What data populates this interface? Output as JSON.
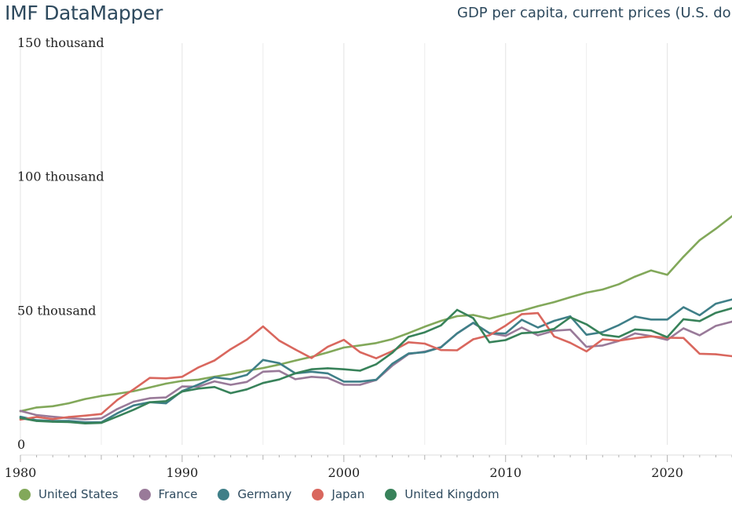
{
  "header": {
    "brand": "IMF DataMapper"
  },
  "chart_data": {
    "type": "line",
    "title": "GDP per capita, current prices (U.S. do",
    "xlabel": "",
    "ylabel": "",
    "xlim": [
      1980,
      2024
    ],
    "ylim": [
      0,
      150000
    ],
    "yticks": [
      {
        "value": 0,
        "label": "0"
      },
      {
        "value": 50000,
        "label": "50 thousand"
      },
      {
        "value": 100000,
        "label": "100 thousand"
      },
      {
        "value": 150000,
        "label": "150 thousand"
      }
    ],
    "xticks": [
      {
        "value": 1980,
        "label": "1980"
      },
      {
        "value": 1990,
        "label": "1990"
      },
      {
        "value": 2000,
        "label": "2000"
      },
      {
        "value": 2010,
        "label": "2010"
      },
      {
        "value": 2020,
        "label": "2020"
      }
    ],
    "minor_gridlines": [
      1985,
      1995,
      2005,
      2015
    ],
    "x": [
      1980,
      1981,
      1982,
      1983,
      1984,
      1985,
      1986,
      1987,
      1988,
      1989,
      1990,
      1991,
      1992,
      1993,
      1994,
      1995,
      1996,
      1997,
      1998,
      1999,
      2000,
      2001,
      2002,
      2003,
      2004,
      2005,
      2006,
      2007,
      2008,
      2009,
      2010,
      2011,
      2012,
      2013,
      2014,
      2015,
      2016,
      2017,
      2018,
      2019,
      2020,
      2021,
      2022,
      2023,
      2024
    ],
    "series": [
      {
        "name": "United States",
        "color": "#82a85a",
        "values": [
          12550,
          13950,
          14400,
          15540,
          17120,
          18240,
          19070,
          20040,
          21420,
          22860,
          23890,
          24340,
          25470,
          26390,
          27690,
          28690,
          29970,
          31460,
          32850,
          34510,
          36330,
          37130,
          37990,
          39490,
          41720,
          44110,
          46300,
          48050,
          48500,
          47100,
          48650,
          50070,
          51780,
          53300,
          55120,
          56850,
          58020,
          59960,
          62820,
          65120,
          63530,
          70220,
          76400,
          80690,
          85370
        ]
      },
      {
        "name": "France",
        "color": "#997a99",
        "values": [
          12700,
          11100,
          10500,
          10000,
          9500,
          9900,
          13400,
          16100,
          17400,
          17700,
          21800,
          21700,
          23700,
          22400,
          23500,
          27300,
          27600,
          24500,
          25400,
          25000,
          22400,
          22400,
          24200,
          29600,
          33900,
          34800,
          36500,
          41600,
          45500,
          41700,
          40700,
          43800,
          40900,
          42600,
          43000,
          36600,
          37100,
          38800,
          41600,
          40600,
          39200,
          43500,
          40900,
          44400,
          46000
        ]
      },
      {
        "name": "Germany",
        "color": "#3f7f88",
        "values": [
          10500,
          9200,
          8900,
          8900,
          8400,
          8400,
          11800,
          14700,
          15900,
          15500,
          20100,
          22500,
          25200,
          24500,
          26100,
          31700,
          30500,
          26700,
          27300,
          26700,
          23600,
          23600,
          24300,
          30300,
          34100,
          34600,
          36400,
          41600,
          45600,
          41700,
          41600,
          46700,
          43800,
          46300,
          48000,
          41100,
          42100,
          44700,
          47900,
          46800,
          46800,
          51400,
          48400,
          52700,
          54300
        ]
      },
      {
        "name": "Japan",
        "color": "#d9675e",
        "values": [
          9400,
          10400,
          9600,
          10400,
          10900,
          11500,
          16800,
          20700,
          25000,
          24800,
          25400,
          28900,
          31500,
          35700,
          39300,
          44200,
          38900,
          35600,
          32400,
          36600,
          39200,
          34600,
          32300,
          35000,
          38300,
          37800,
          35400,
          35300,
          39400,
          40900,
          44500,
          48800,
          49200,
          40500,
          38100,
          34900,
          39400,
          38900,
          39800,
          40500,
          40000,
          39900,
          34000,
          33800,
          33100
        ]
      },
      {
        "name": "United Kingdom",
        "color": "#38825a",
        "values": [
          10000,
          8900,
          8600,
          8500,
          8000,
          8200,
          10600,
          13100,
          15900,
          16300,
          19900,
          21000,
          21600,
          19300,
          20700,
          23100,
          24400,
          26700,
          28200,
          28600,
          28200,
          27700,
          30100,
          34400,
          40300,
          42000,
          44600,
          50400,
          47300,
          38300,
          39100,
          41700,
          42000,
          43300,
          47600,
          45000,
          41100,
          40300,
          43100,
          42700,
          40200,
          46900,
          46200,
          49300,
          51000
        ]
      }
    ]
  }
}
